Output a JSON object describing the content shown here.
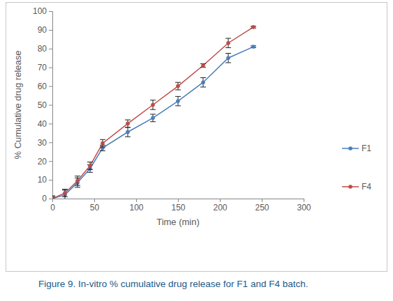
{
  "chart_data": {
    "type": "line",
    "caption": "Figure 9. In-vitro % cumulative drug release for F1 and F4 batch.",
    "x_label": "Time (min)",
    "y_label": "% Cumulative drug release",
    "x": [
      0,
      15,
      30,
      45,
      60,
      90,
      120,
      150,
      180,
      210,
      240
    ],
    "series": [
      {
        "name": "F1",
        "color": "#4a7ebb",
        "marker": "circle",
        "values": [
          0,
          2,
          8.5,
          16,
          27,
          35.5,
          43,
          52,
          62,
          75,
          81
        ],
        "errors": [
          1.5,
          2.5,
          2.5,
          2,
          1.5,
          2.5,
          2,
          2.5,
          2.5,
          2.5,
          0.5
        ]
      },
      {
        "name": "F4",
        "color": "#be4b48",
        "marker": "circle",
        "values": [
          0,
          3,
          9.5,
          17.5,
          29.5,
          40,
          50,
          60,
          71,
          83,
          91.5
        ],
        "errors": [
          1,
          2,
          2.5,
          2,
          2,
          2,
          2.5,
          2,
          1,
          2.5,
          0.5
        ]
      }
    ],
    "xlim": [
      0,
      300
    ],
    "xticks": [
      0,
      50,
      100,
      150,
      200,
      250,
      300
    ],
    "ylim": [
      0,
      100
    ],
    "yticks": [
      0,
      10,
      20,
      30,
      40,
      50,
      60,
      70,
      80,
      90,
      100
    ],
    "grid": false,
    "legend": "right"
  }
}
